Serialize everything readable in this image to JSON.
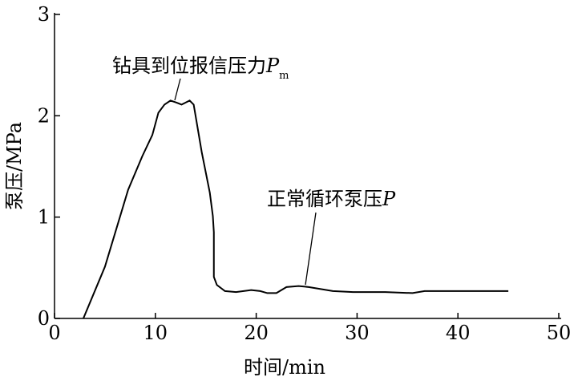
{
  "chart_data": {
    "type": "line",
    "x_label": "时间/min",
    "y_label": "泵压/MPa",
    "xlim": [
      0,
      50
    ],
    "xticks": [
      0,
      10,
      20,
      30,
      40,
      50
    ],
    "ylim": [
      0,
      3
    ],
    "yticks": [
      0,
      1,
      2,
      3
    ],
    "grid": false,
    "series": [
      {
        "color": "#000000",
        "x": [
          2.86,
          5.0,
          7.3,
          8.7,
          9.7,
          10.3,
          10.9,
          11.5,
          12.1,
          12.6,
          13.0,
          13.4,
          13.8,
          14.6,
          15.4,
          15.7,
          15.8,
          15.8,
          16.1,
          16.9,
          18.0,
          19.5,
          20.4,
          21.1,
          22.0,
          23.0,
          24.2,
          25.2,
          27.6,
          29.6,
          32.8,
          35.5,
          36.7,
          42.3,
          45.0
        ],
        "values": [
          0,
          0.51,
          1.27,
          1.6,
          1.81,
          2.03,
          2.11,
          2.15,
          2.13,
          2.11,
          2.13,
          2.15,
          2.11,
          1.64,
          1.24,
          1.01,
          0.85,
          0.41,
          0.33,
          0.27,
          0.26,
          0.28,
          0.27,
          0.25,
          0.25,
          0.31,
          0.32,
          0.31,
          0.27,
          0.26,
          0.26,
          0.25,
          0.27,
          0.27,
          0.27
        ]
      }
    ],
    "annotations": [
      {
        "text": "钻具到位报信压力",
        "symbol": "P",
        "subscript": "m"
      },
      {
        "text": "正常循环泵压",
        "symbol": "P"
      }
    ]
  }
}
